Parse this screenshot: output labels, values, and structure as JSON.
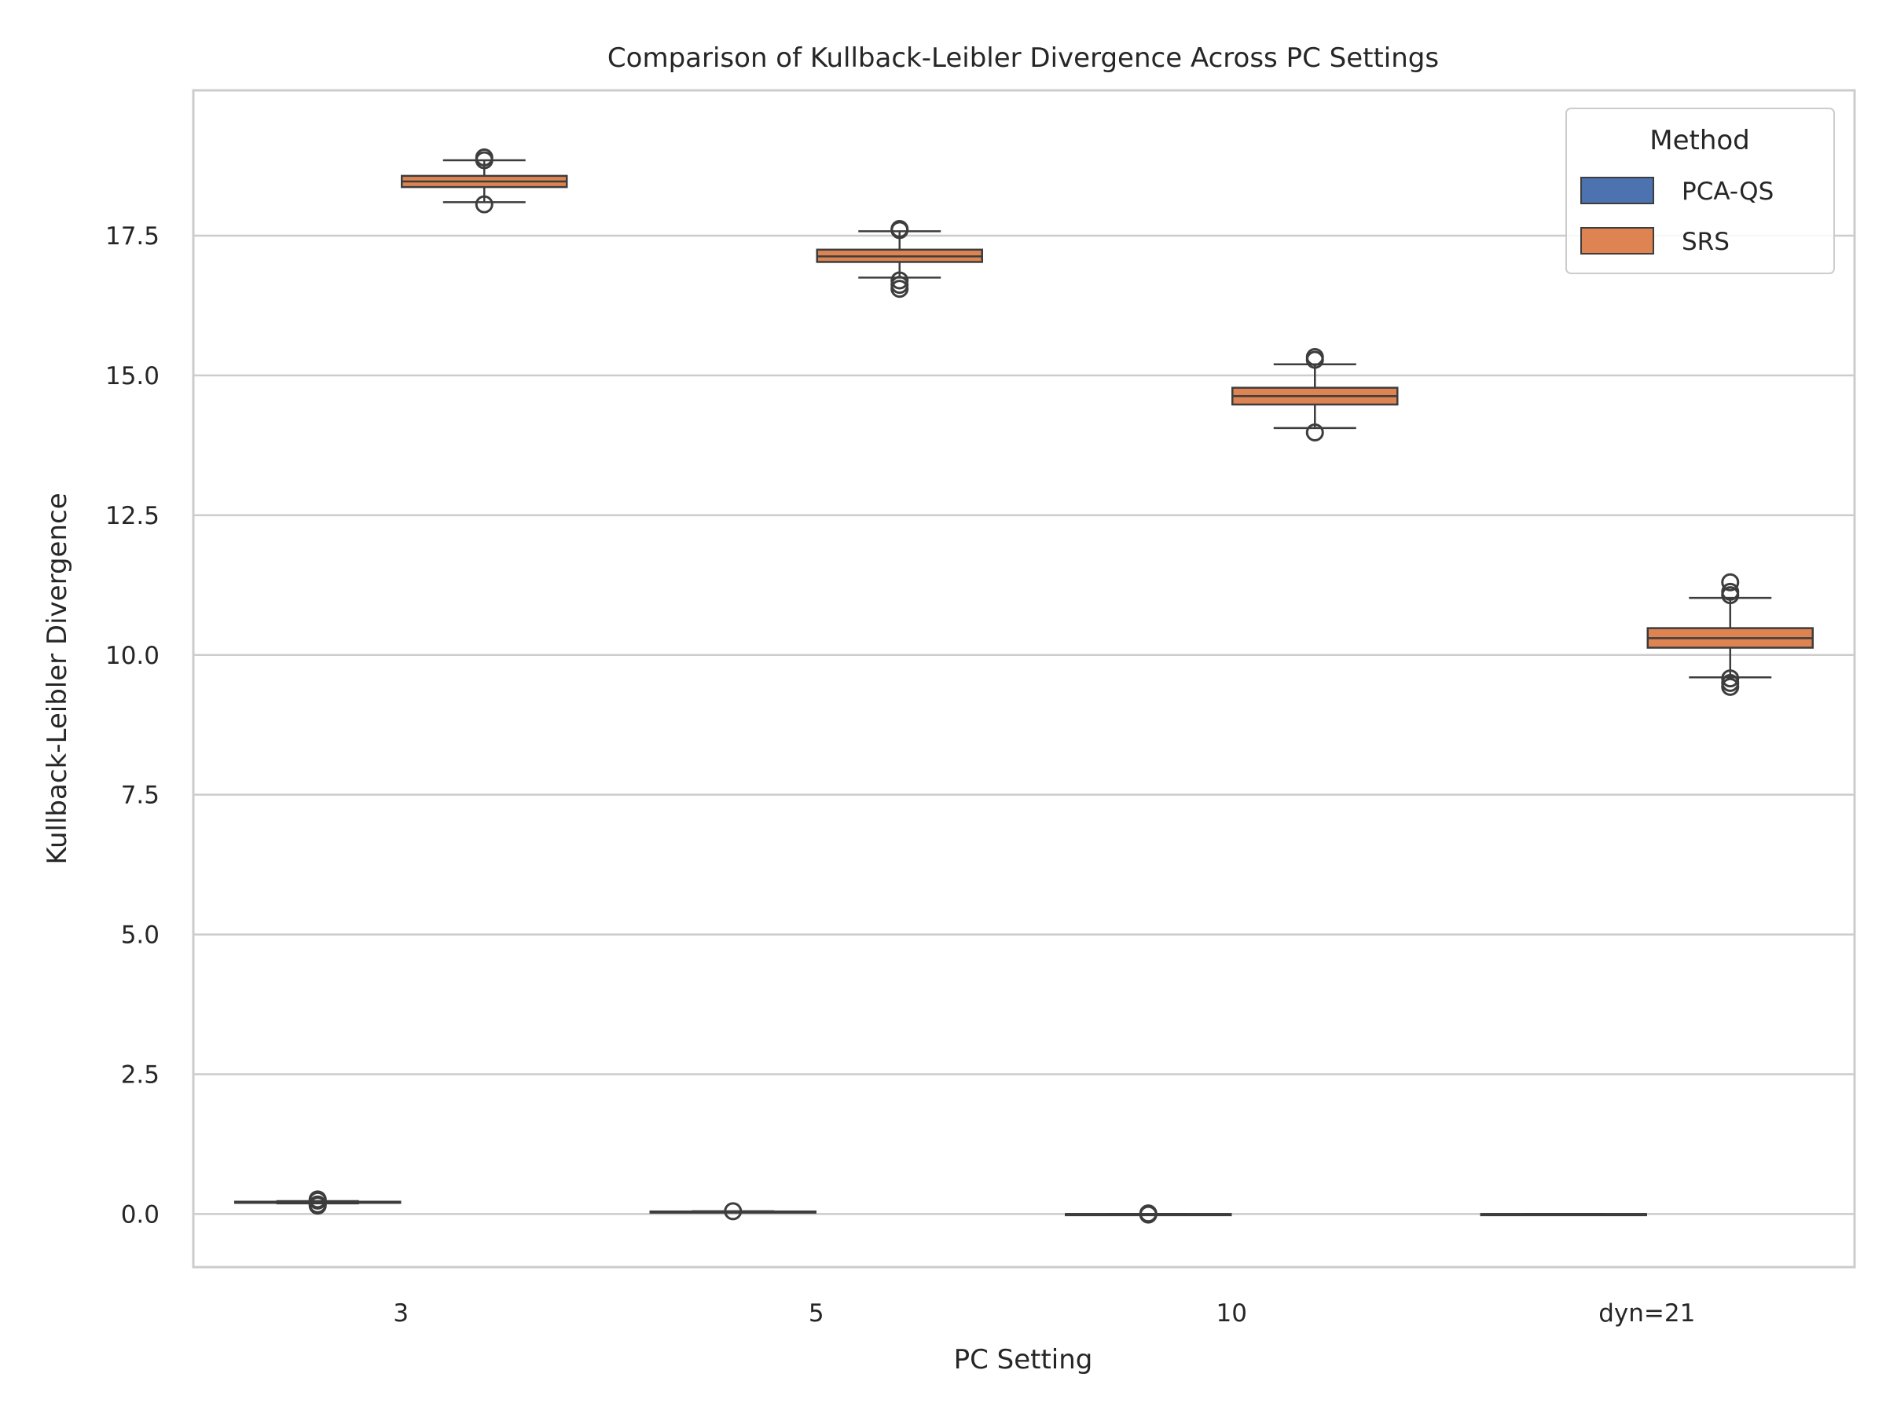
{
  "chart_data": {
    "type": "box",
    "title": "Comparison of Kullback-Leibler Divergence Across PC Settings",
    "xlabel": "PC Setting",
    "ylabel": "Kullback-Leibler Divergence",
    "categories": [
      "3",
      "5",
      "10",
      "dyn=21"
    ],
    "ylim": [
      -0.95,
      20.1
    ],
    "yticks": [
      0.0,
      2.5,
      5.0,
      7.5,
      10.0,
      12.5,
      15.0,
      17.5
    ],
    "ytick_labels": [
      "0.0",
      "2.5",
      "5.0",
      "7.5",
      "10.0",
      "12.5",
      "15.0",
      "17.5"
    ],
    "grid": true,
    "legend": {
      "title": "Method",
      "position": "top-right"
    },
    "colors": {
      "PCA-QS": "#4c72b0",
      "SRS": "#dd8452",
      "edge": "#3d3d3d",
      "grid": "#cccccc",
      "frame": "#cccccc"
    },
    "series": [
      {
        "name": "PCA-QS",
        "boxes": [
          {
            "category": "3",
            "whisker_low": 0.19,
            "q1": 0.2,
            "median": 0.21,
            "q3": 0.22,
            "whisker_high": 0.23,
            "outliers": [
              0.15,
              0.17,
              0.24,
              0.26
            ]
          },
          {
            "category": "5",
            "whisker_low": 0.03,
            "q1": 0.035,
            "median": 0.04,
            "q3": 0.045,
            "whisker_high": 0.05,
            "outliers": [
              0.05
            ]
          },
          {
            "category": "10",
            "whisker_low": 0.0,
            "q1": 0.0,
            "median": 0.0,
            "q3": 0.0,
            "whisker_high": 0.0,
            "outliers": [
              -0.01,
              0.01
            ]
          },
          {
            "category": "dyn=21",
            "whisker_low": 0.0,
            "q1": 0.0,
            "median": 0.0,
            "q3": 0.0,
            "whisker_high": 0.0,
            "outliers": []
          }
        ]
      },
      {
        "name": "SRS",
        "boxes": [
          {
            "category": "3",
            "whisker_low": 18.1,
            "q1": 18.37,
            "median": 18.47,
            "q3": 18.57,
            "whisker_high": 18.85,
            "outliers": [
              18.06,
              18.85,
              18.9
            ]
          },
          {
            "category": "5",
            "whisker_low": 16.75,
            "q1": 17.03,
            "median": 17.13,
            "q3": 17.25,
            "whisker_high": 17.58,
            "outliers": [
              16.55,
              16.62,
              16.7,
              17.6,
              17.62
            ]
          },
          {
            "category": "10",
            "whisker_low": 14.06,
            "q1": 14.48,
            "median": 14.63,
            "q3": 14.78,
            "whisker_high": 15.2,
            "outliers": [
              13.98,
              15.28,
              15.33
            ]
          },
          {
            "category": "dyn=21",
            "whisker_low": 9.6,
            "q1": 10.13,
            "median": 10.3,
            "q3": 10.48,
            "whisker_high": 11.02,
            "outliers": [
              9.43,
              9.5,
              9.58,
              11.07,
              11.13,
              11.3
            ]
          }
        ]
      }
    ]
  }
}
